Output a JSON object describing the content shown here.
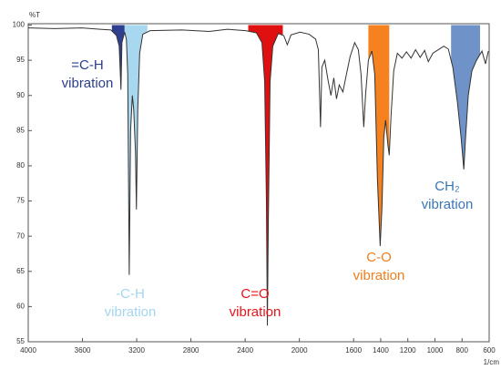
{
  "chart_data": {
    "type": "line",
    "y_label": "%T",
    "x_label": "1/cm",
    "xlim": [
      4000,
      600
    ],
    "ylim": [
      55,
      100
    ],
    "xticks": [
      4000,
      3600,
      3200,
      2800,
      2400,
      2000,
      1600,
      1400,
      1200,
      1000,
      800,
      600
    ],
    "yticks": [
      55,
      60,
      65,
      70,
      75,
      80,
      85,
      90,
      95,
      100
    ],
    "color": "#333333",
    "x": [
      4000,
      3805,
      3604,
      3470,
      3390,
      3349,
      3329,
      3316,
      3309,
      3289,
      3276,
      3266,
      3255,
      3245,
      3232,
      3222,
      3209,
      3202,
      3192,
      3178,
      3155,
      3101,
      2867,
      2665,
      2531,
      2397,
      2317,
      2276,
      2256,
      2243,
      2236,
      2229,
      2216,
      2196,
      2156,
      2115,
      2089,
      2062,
      1995,
      1928,
      1880,
      1860,
      1844,
      1834,
      1813,
      1787,
      1767,
      1746,
      1726,
      1706,
      1679,
      1653,
      1626,
      1592,
      1565,
      1545,
      1525,
      1512,
      1491,
      1465,
      1444,
      1424,
      1404,
      1391,
      1377,
      1364,
      1347,
      1337,
      1324,
      1304,
      1277,
      1243,
      1210,
      1176,
      1143,
      1109,
      1076,
      1049,
      1015,
      975,
      935,
      901,
      868,
      834,
      807,
      787,
      774,
      754,
      727,
      693,
      653,
      627,
      606
    ],
    "values": [
      99.6,
      99.5,
      99.6,
      99.4,
      99.3,
      98.5,
      97,
      90.8,
      97.5,
      99,
      98,
      93,
      64.5,
      85,
      90,
      88,
      82,
      73.8,
      88,
      96,
      98.7,
      99.2,
      99.3,
      99.1,
      99.4,
      99.2,
      98.9,
      97.5,
      92,
      75,
      57.3,
      72,
      92,
      97,
      98.8,
      98.5,
      97.2,
      98.6,
      99,
      98.7,
      98,
      96.5,
      85.5,
      94,
      95,
      92,
      90,
      92.5,
      89.5,
      91.5,
      90.5,
      93,
      95.5,
      97.5,
      96.5,
      93,
      85.5,
      90,
      95,
      96.3,
      93,
      78,
      68.6,
      74,
      84,
      86.5,
      83,
      81.5,
      87,
      93.5,
      96,
      95.3,
      96.2,
      95.3,
      96.5,
      95.4,
      96.4,
      94.8,
      96,
      96.5,
      97,
      96.6,
      94,
      89,
      84,
      79.5,
      84,
      90,
      93.5,
      95,
      96.3,
      94.5,
      96.3
    ],
    "bands": [
      {
        "xrange": [
          3383,
          3289
        ],
        "color": "#2e3f8f",
        "label_color": "#2b3f8c",
        "label": [
          "=C-H",
          "vibration"
        ]
      },
      {
        "xrange": [
          3289,
          3121
        ],
        "color": "#a7d8f0",
        "label_color": "#a5d5ef",
        "label": [
          "-C-H",
          "vibration"
        ]
      },
      {
        "xrange": [
          2377,
          2122
        ],
        "color": "#e01010",
        "label_color": "#e8141a",
        "label": [
          "C=O",
          "vibration"
        ]
      },
      {
        "xrange": [
          1491,
          1337
        ],
        "color": "#f5821f",
        "label_color": "#f07d1e",
        "label": [
          "C-O",
          "vibration"
        ]
      },
      {
        "xrange": [
          881,
          667
        ],
        "color": "#6f93c8",
        "label_color": "#3a75b8",
        "label": [
          "CH₂",
          "vibration"
        ]
      }
    ]
  }
}
